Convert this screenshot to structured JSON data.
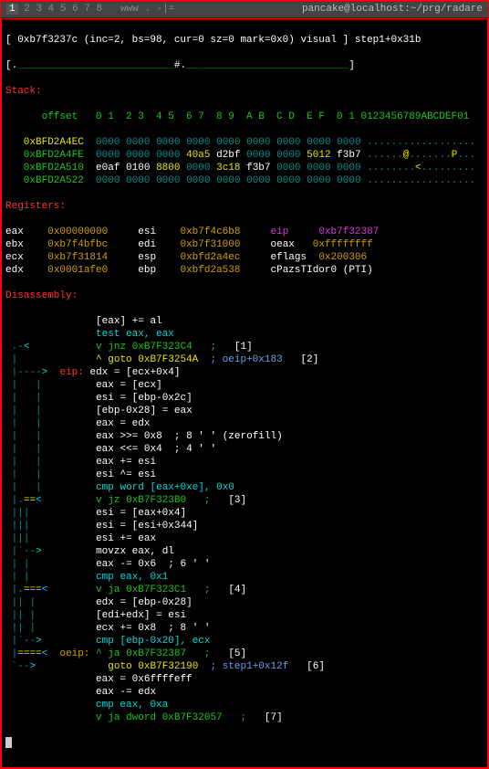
{
  "colors": {
    "white": "#ffffff",
    "gray": "#888888",
    "green": "#1fc41f",
    "dgreen": "#0a8a0a",
    "yellow": "#e6e600",
    "cyan": "#00d8d8",
    "dcyan": "#0a8a8a",
    "red": "#ff3333",
    "magenta": "#d838d8",
    "blue": "#6aa0e8",
    "orange": "#cca000",
    "bg": "#000000",
    "border": "#ff0000",
    "titlebar_bg": "#444444"
  },
  "titlebar": {
    "tabs": [
      "1",
      "2",
      "3",
      "4",
      "5",
      "6",
      "7",
      "8"
    ],
    "spacer": "www . -|=",
    "title": "pancake@localhost:~/prg/radare"
  },
  "header": {
    "l1_a": "[ 0xb7f3237c (inc=2, bs=98, cur=0 sz=0 mark=0x0) visual ] step1+0x31b",
    "l2_a": "[.",
    "l2_b": "__________________________",
    "l2_c": "#.",
    "l2_d": "___________________________",
    "l2_e": "]"
  },
  "stack": {
    "label": "Stack:",
    "header": "      offset   0 1  2 3  4 5  6 7  8 9  A B  C D  E F  0 1 0123456789ABCDEF01",
    "rows": [
      {
        "addr": "0xBFD2A4EC",
        "w": [
          "0000",
          "0000",
          "0000",
          "0000",
          "0000",
          "0000",
          "0000",
          "0000",
          "0000"
        ],
        "asc": ".................."
      },
      {
        "addr": "0xBFD2A4FE",
        "w": [
          "0000",
          "0000",
          "0000",
          "40a5",
          "d2bf",
          "0000",
          "0000",
          "5012",
          "f3b7"
        ],
        "asc": "......@.......P...",
        "hl": {
          "3": "yellow",
          "4": "white",
          "7": "yellow",
          "8": "white"
        }
      },
      {
        "addr": "0xBFD2A510",
        "w": [
          "e0af",
          "0100",
          "8800",
          "0000",
          "3c18",
          "f3b7",
          "0000",
          "0000",
          "0000"
        ],
        "asc": "........<.........",
        "hl": {
          "0": "white",
          "1": "white",
          "2": "yellow",
          "4": "yellow",
          "5": "white"
        }
      },
      {
        "addr": "0xBFD2A522",
        "w": [
          "0000",
          "0000",
          "0000",
          "0000",
          "0000",
          "0000",
          "0000",
          "0000",
          "0000"
        ],
        "asc": ".................."
      }
    ]
  },
  "registers": {
    "label": "Registers:",
    "rows": [
      [
        [
          "eax",
          "0x00000000"
        ],
        [
          "esi",
          "0xb7f4c6b8"
        ],
        [
          "eip",
          "0xb7f32387",
          "mag"
        ]
      ],
      [
        [
          "ebx",
          "0xb7f4bfbc"
        ],
        [
          "edi",
          "0xb7f31000"
        ],
        [
          "oeax",
          "0xffffffff"
        ]
      ],
      [
        [
          "ecx",
          "0xb7f31814"
        ],
        [
          "esp",
          "0xbfd2a4ec"
        ],
        [
          "eflags",
          "0x200306"
        ]
      ],
      [
        [
          "edx",
          "0x0001afe0"
        ],
        [
          "ebp",
          "0xbfd2a538"
        ],
        [
          "cPazsTIdor0 (PTI)",
          "",
          "plain"
        ]
      ]
    ]
  },
  "disasm": {
    "label": "Disassembly:",
    "lines": [
      {
        "pre": "",
        "arrow": "",
        "txt": "[eax] += al",
        "cls": "c-white"
      },
      {
        "pre": "",
        "arrow": "",
        "txt": "test eax, eax",
        "cls": "c-cyan"
      },
      {
        "pre": " .-<",
        "arrow": "",
        "t1": "v jnz 0xB7F323C4   ;   ",
        "t2": "[1]",
        "cls": "c-green",
        "ref": true
      },
      {
        "pre": " |",
        "arrow": "",
        "t1": "^ goto 0xB7F3254A  ",
        "t2": "; oeip+0x183   ",
        "t3": "[2]",
        "cls": "c-yellow",
        "ref": true,
        "comment": true
      },
      {
        "pre": " |---->",
        "lbl": " eip: ",
        "txt": "edx = [ecx+0x4]",
        "cls": "c-white"
      },
      {
        "pre": " |   |",
        "txt": "eax = [ecx]",
        "cls": "c-white"
      },
      {
        "pre": " |   |",
        "txt": "esi = [ebp-0x2c]",
        "cls": "c-white"
      },
      {
        "pre": " |   |",
        "txt": "[ebp-0x28] = eax",
        "cls": "c-white"
      },
      {
        "pre": " |   |",
        "txt": "eax = edx",
        "cls": "c-white"
      },
      {
        "pre": " |   |",
        "txt": "eax >>= 0x8  ; 8 ' ' (zerofill)",
        "cls": "c-white"
      },
      {
        "pre": " |   |",
        "txt": "eax <<= 0x4  ; 4 ' '",
        "cls": "c-white"
      },
      {
        "pre": " |   |",
        "txt": "eax += esi",
        "cls": "c-white"
      },
      {
        "pre": " |   |",
        "txt": "esi ^= esi",
        "cls": "c-white"
      },
      {
        "pre": " |   |",
        "txt": "cmp word [eax+0xe], 0x0",
        "cls": "c-cyan"
      },
      {
        "pre": " |.==<",
        "t1": "v jz 0xB7F323B0   ;   ",
        "t2": "[3]",
        "cls": "c-green",
        "ref": true
      },
      {
        "pre": " |||",
        "txt": "esi = [eax+0x4]",
        "cls": "c-white"
      },
      {
        "pre": " |||",
        "txt": "esi = [esi+0x344]",
        "cls": "c-white"
      },
      {
        "pre": " |||",
        "txt": "esi += eax",
        "cls": "c-white"
      },
      {
        "pre": " |`-->",
        "txt": "movzx eax, dl",
        "cls": "c-white"
      },
      {
        "pre": " | |",
        "txt": "eax -= 0x6  ; 6 ' '",
        "cls": "c-white"
      },
      {
        "pre": " | |",
        "txt": "cmp eax, 0x1",
        "cls": "c-cyan"
      },
      {
        "pre": " |.===<",
        "t1": "v ja 0xB7F323C1   ;   ",
        "t2": "[4]",
        "cls": "c-green",
        "ref": true
      },
      {
        "pre": " || |",
        "txt": "edx = [ebp-0x28]",
        "cls": "c-white"
      },
      {
        "pre": " || |",
        "txt": "[edi+edx] = esi",
        "cls": "c-white"
      },
      {
        "pre": " || |",
        "txt": "ecx += 0x8  ; 8 ' '",
        "cls": "c-white"
      },
      {
        "pre": " |`-->",
        "txt": "cmp [ebp-0x20], ecx",
        "cls": "c-cyan"
      },
      {
        "pre": " |====<",
        "lbl": " oeip:",
        "t1": " ^ ja 0xB7F32387   ;   ",
        "t2": "[5]",
        "cls": "c-green",
        "ref": true,
        "oe": true
      },
      {
        "pre": " `-->",
        "arrow": "",
        "t1": "  goto 0xB7F32190  ",
        "t2": "; step1+0x12f   ",
        "t3": "[6]",
        "cls": "c-yellow",
        "ref": true,
        "comment": true
      },
      {
        "pre": "",
        "txt": "eax = 0x6ffffeff",
        "cls": "c-white"
      },
      {
        "pre": "",
        "txt": "eax -= edx",
        "cls": "c-white"
      },
      {
        "pre": "",
        "txt": "cmp eax, 0xa",
        "cls": "c-cyan"
      },
      {
        "pre": "",
        "t1": "v ja dword 0xB7F32057   ;   ",
        "t2": "[7]",
        "cls": "c-green",
        "ref": true
      }
    ]
  }
}
